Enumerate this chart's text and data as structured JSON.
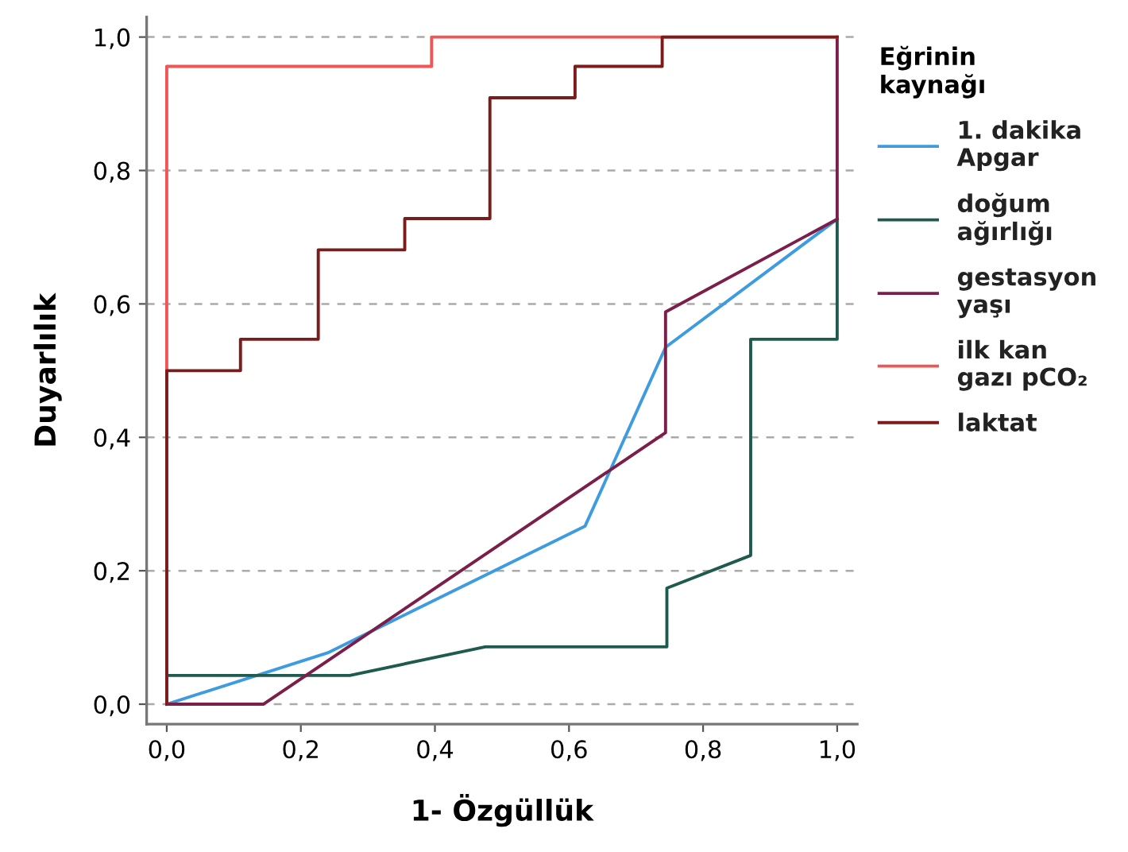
{
  "chart_data": {
    "type": "line",
    "xlabel": "1- Özgüllük",
    "ylabel": "Duyarlılık",
    "legend_title": "Eğrinin\nkaynağı",
    "xlim": [
      -0.03,
      1.03
    ],
    "ylim": [
      -0.03,
      1.03
    ],
    "xticks": [
      {
        "value": 0,
        "label": "0,0"
      },
      {
        "value": 0.2,
        "label": "0,2"
      },
      {
        "value": 0.4,
        "label": "0,4"
      },
      {
        "value": 0.6,
        "label": "0,6"
      },
      {
        "value": 0.8,
        "label": "0,8"
      },
      {
        "value": 1,
        "label": "1,0"
      }
    ],
    "yticks": [
      {
        "value": 0,
        "label": "0,0"
      },
      {
        "value": 0.2,
        "label": "0,2"
      },
      {
        "value": 0.4,
        "label": "0,4"
      },
      {
        "value": 0.6,
        "label": "0,6"
      },
      {
        "value": 0.8,
        "label": "0,8"
      },
      {
        "value": 1,
        "label": "1,0"
      }
    ],
    "grid": "y",
    "legend": "right",
    "marker": "none",
    "line_style": "solid",
    "series": [
      {
        "name": "1. dakika\nApgar",
        "color": "#3d9be0",
        "x": [
          0,
          0.24,
          0.624,
          0.744,
          1
        ],
        "values": [
          0,
          0.077,
          0.267,
          0.535,
          0.727
        ]
      },
      {
        "name": "doğum\nağırlığı",
        "color": "#1f5a4e",
        "x": [
          0,
          0,
          0.273,
          0.475,
          0.746,
          0.746,
          0.871,
          0.871,
          1,
          1
        ],
        "values": [
          0,
          0.043,
          0.043,
          0.086,
          0.086,
          0.174,
          0.223,
          0.547,
          0.547,
          0.727
        ]
      },
      {
        "name": "gestasyon\nyaşı",
        "color": "#7b1f4a",
        "x": [
          0,
          0.144,
          0.744,
          0.744,
          1,
          1
        ],
        "values": [
          0,
          0,
          0.407,
          0.588,
          0.727,
          1
        ]
      },
      {
        "name": "ilk kan\ngazı pCO₂",
        "color": "#f05656",
        "x": [
          0,
          0,
          0.395,
          0.395,
          1
        ],
        "values": [
          0,
          0.956,
          0.956,
          1,
          1
        ]
      },
      {
        "name": "laktat",
        "color": "#7a1c1c",
        "x": [
          0,
          0,
          0.11,
          0.11,
          0.226,
          0.226,
          0.355,
          0.355,
          0.482,
          0.482,
          0.609,
          0.609,
          0.739,
          0.739,
          1
        ],
        "values": [
          0,
          0.5,
          0.5,
          0.547,
          0.547,
          0.681,
          0.681,
          0.728,
          0.728,
          0.909,
          0.909,
          0.956,
          0.956,
          1,
          1
        ]
      }
    ]
  }
}
